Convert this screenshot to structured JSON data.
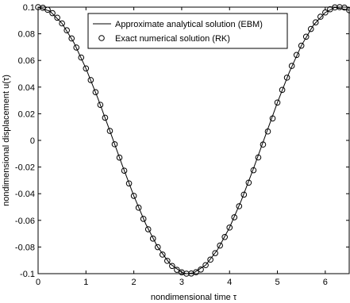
{
  "chart_data": {
    "type": "line",
    "xlabel": "nondimensional time τ",
    "ylabel": "nondimensional displacement u(τ)",
    "xlim": [
      0,
      6.5
    ],
    "ylim": [
      -0.1,
      0.1
    ],
    "xticks": [
      0,
      1,
      2,
      3,
      4,
      5,
      6
    ],
    "yticks": [
      -0.1,
      -0.08,
      -0.06,
      -0.04,
      -0.02,
      0,
      0.02,
      0.04,
      0.06,
      0.08,
      0.1
    ],
    "xtick_labels": [
      "0",
      "1",
      "2",
      "3",
      "4",
      "5",
      "6"
    ],
    "ytick_labels": [
      "-0.1",
      "-0.08",
      "-0.06",
      "-0.04",
      "-0.02",
      "0",
      "0.02",
      "0.04",
      "0.06",
      "0.08",
      "0.1"
    ],
    "grid": false,
    "legend_position": "top-right",
    "series": [
      {
        "name": "Approximate analytical solution (EBM)",
        "style": "solid-line",
        "color": "#000000",
        "x": [
          0,
          0.25,
          0.5,
          0.75,
          1.0,
          1.25,
          1.5,
          1.75,
          2.0,
          2.25,
          2.5,
          2.75,
          3.0,
          3.1,
          3.25,
          3.5,
          3.75,
          4.0,
          4.25,
          4.5,
          4.75,
          5.0,
          5.25,
          5.5,
          5.75,
          6.0,
          6.2,
          6.5
        ],
        "y": [
          0.1,
          0.0969,
          0.0878,
          0.0732,
          0.054,
          0.0315,
          0.0071,
          -0.0178,
          -0.0416,
          -0.0628,
          -0.0801,
          -0.0924,
          -0.099,
          -0.1,
          -0.0994,
          -0.0936,
          -0.082,
          -0.0654,
          -0.0447,
          -0.0211,
          0.0037,
          0.0284,
          0.0513,
          0.0711,
          0.0864,
          0.096,
          0.0998,
          0.0977
        ]
      },
      {
        "name": "Exact numerical solution (RK)",
        "style": "open-circle",
        "color": "#000000",
        "x": [
          0,
          0.1,
          0.2,
          0.3,
          0.4,
          0.5,
          0.6,
          0.7,
          0.8,
          0.9,
          1.0,
          1.1,
          1.2,
          1.3,
          1.4,
          1.5,
          1.6,
          1.7,
          1.8,
          1.9,
          2.0,
          2.1,
          2.2,
          2.3,
          2.4,
          2.5,
          2.6,
          2.7,
          2.8,
          2.9,
          3.0,
          3.1,
          3.2,
          3.3,
          3.4,
          3.5,
          3.6,
          3.7,
          3.8,
          3.9,
          4.0,
          4.1,
          4.2,
          4.3,
          4.4,
          4.5,
          4.6,
          4.7,
          4.8,
          4.9,
          5.0,
          5.1,
          5.2,
          5.3,
          5.4,
          5.5,
          5.6,
          5.7,
          5.8,
          5.9,
          6.0,
          6.1,
          6.2,
          6.3,
          6.4,
          6.5
        ],
        "y": [
          0.1,
          0.0995,
          0.098,
          0.0955,
          0.0921,
          0.0878,
          0.0826,
          0.0765,
          0.0697,
          0.0622,
          0.054,
          0.0453,
          0.0362,
          0.0267,
          0.017,
          0.0071,
          -0.0029,
          -0.0129,
          -0.0227,
          -0.0323,
          -0.0416,
          -0.0505,
          -0.0589,
          -0.0667,
          -0.0737,
          -0.0801,
          -0.0857,
          -0.0904,
          -0.0942,
          -0.0971,
          -0.099,
          -0.1,
          -0.0999,
          -0.0989,
          -0.0969,
          -0.0936,
          -0.0895,
          -0.0846,
          -0.0789,
          -0.0725,
          -0.0654,
          -0.0577,
          -0.0494,
          -0.0407,
          -0.0317,
          -0.0224,
          -0.0128,
          -0.0031,
          0.0067,
          0.0165,
          0.0284,
          0.0379,
          0.0471,
          0.0559,
          0.0641,
          0.0711,
          0.0778,
          0.0836,
          0.0886,
          0.0928,
          0.096,
          0.0984,
          0.0998,
          0.1,
          0.0997,
          0.0977
        ]
      }
    ]
  }
}
